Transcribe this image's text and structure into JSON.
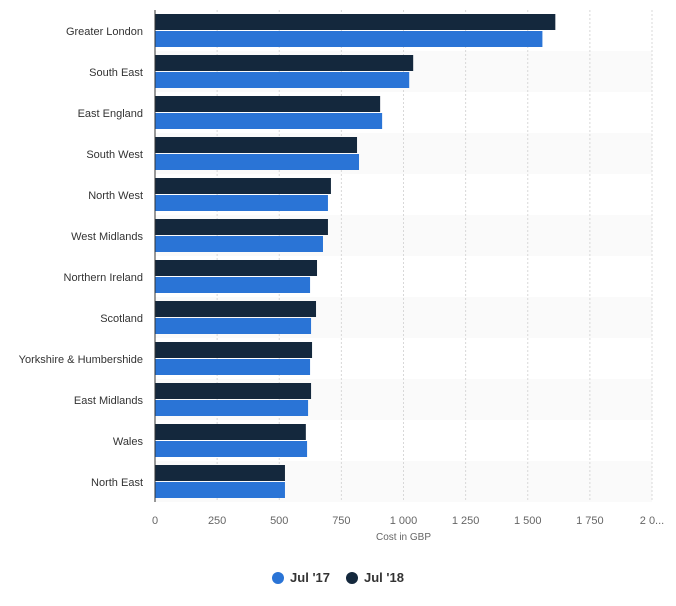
{
  "chart_data": {
    "type": "bar",
    "orientation": "horizontal",
    "categories": [
      "Greater London",
      "South East",
      "East England",
      "South West",
      "North West",
      "West Midlands",
      "Northern Ireland",
      "Scotland",
      "Yorkshire & Humbershide",
      "East Midlands",
      "Wales",
      "North East"
    ],
    "series": [
      {
        "name": "Jul '18",
        "color": "#14283d",
        "values": [
          1611,
          1039,
          906,
          813,
          708,
          696,
          652,
          648,
          632,
          628,
          607,
          523
        ]
      },
      {
        "name": "Jul '17",
        "color": "#2a74d6",
        "values": [
          1559,
          1023,
          914,
          821,
          696,
          676,
          624,
          628,
          624,
          616,
          612,
          523
        ]
      }
    ],
    "xlabel": "Cost in GBP",
    "xlim": [
      0,
      2000
    ],
    "xticks": [
      0,
      250,
      500,
      750,
      1000,
      1250,
      1500,
      1750,
      2000
    ],
    "xtick_labels": [
      "0",
      "250",
      "500",
      "750",
      "1 000",
      "1 250",
      "1 500",
      "1 750",
      "2 0..."
    ],
    "grid": true,
    "legend_position": "bottom",
    "legend": [
      {
        "label": "Jul '17",
        "color": "#2a74d6"
      },
      {
        "label": "Jul '18",
        "color": "#14283d"
      }
    ]
  }
}
